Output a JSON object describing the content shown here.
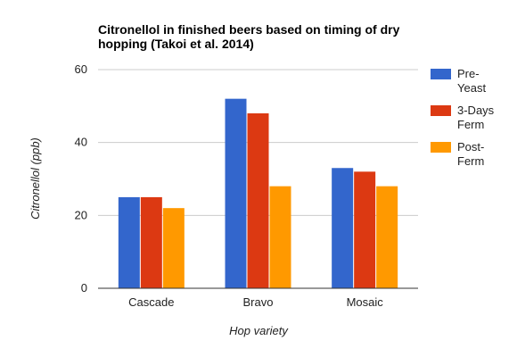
{
  "chart_data": {
    "type": "bar",
    "title_lines": [
      "Citronellol in finished beers based on timing of dry",
      "hopping (Takoi et al. 2014)"
    ],
    "xlabel": "Hop variety",
    "ylabel": "Citronellol (ppb)",
    "categories": [
      "Cascade",
      "Bravo",
      "Mosaic"
    ],
    "ylim": [
      0,
      60
    ],
    "yticks": [
      "0",
      "20",
      "40",
      "60"
    ],
    "grid": true,
    "legend_position": "right",
    "series": [
      {
        "name": "Pre-Yeast",
        "legend_lines": [
          "Pre-",
          "Yeast"
        ],
        "color": "#3366cc",
        "values": [
          25,
          52,
          33
        ]
      },
      {
        "name": "3-Days Ferm",
        "legend_lines": [
          "3-Days",
          "Ferm"
        ],
        "color": "#dc3912",
        "values": [
          25,
          48,
          32
        ]
      },
      {
        "name": "Post-Ferm",
        "legend_lines": [
          "Post-",
          "Ferm"
        ],
        "color": "#ff9900",
        "values": [
          22,
          28,
          28
        ]
      }
    ]
  }
}
